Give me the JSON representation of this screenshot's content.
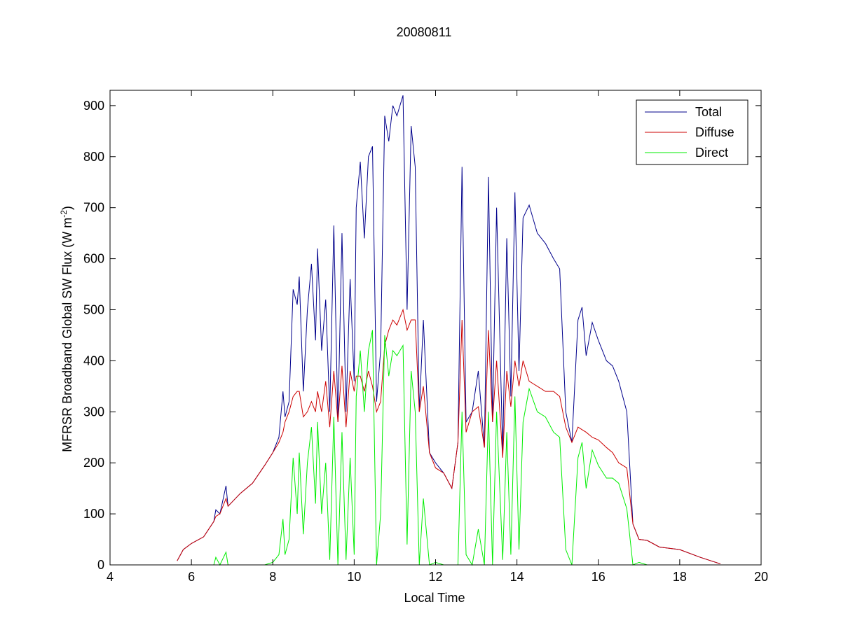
{
  "chart_data": {
    "type": "line",
    "title": "20080811",
    "xlabel": "Local Time",
    "ylabel": [
      "MFRSR Broadband Global SW Flux (W m",
      "-2",
      ")"
    ],
    "x": [
      5.65,
      5.8,
      6.0,
      6.3,
      6.55,
      6.6,
      6.7,
      6.85,
      6.9,
      7.2,
      7.5,
      7.8,
      8.0,
      8.15,
      8.25,
      8.3,
      8.4,
      8.5,
      8.6,
      8.65,
      8.75,
      8.85,
      8.95,
      9.05,
      9.1,
      9.2,
      9.3,
      9.4,
      9.5,
      9.6,
      9.7,
      9.8,
      9.9,
      10.0,
      10.05,
      10.15,
      10.25,
      10.35,
      10.45,
      10.55,
      10.65,
      10.75,
      10.85,
      10.95,
      11.05,
      11.2,
      11.3,
      11.4,
      11.5,
      11.6,
      11.7,
      11.85,
      12.0,
      12.2,
      12.4,
      12.55,
      12.65,
      12.75,
      12.9,
      13.05,
      13.2,
      13.3,
      13.4,
      13.5,
      13.65,
      13.75,
      13.85,
      13.95,
      14.05,
      14.15,
      14.3,
      14.5,
      14.7,
      14.9,
      15.05,
      15.2,
      15.35,
      15.5,
      15.6,
      15.7,
      15.85,
      16.0,
      16.2,
      16.35,
      16.5,
      16.7,
      16.85,
      17.0,
      17.2,
      17.5,
      18.0,
      18.5,
      19.0
    ],
    "series": [
      {
        "name": "Total",
        "color": "#00008b",
        "values": [
          8,
          30,
          42,
          55,
          85,
          108,
          100,
          155,
          115,
          140,
          160,
          195,
          220,
          250,
          340,
          290,
          320,
          540,
          510,
          565,
          340,
          500,
          590,
          440,
          620,
          420,
          520,
          300,
          665,
          280,
          650,
          300,
          560,
          360,
          700,
          790,
          640,
          800,
          820,
          320,
          420,
          880,
          830,
          900,
          880,
          920,
          500,
          860,
          780,
          300,
          480,
          220,
          200,
          180,
          150,
          240,
          780,
          280,
          300,
          380,
          230,
          760,
          280,
          700,
          220,
          640,
          330,
          730,
          380,
          680,
          705,
          650,
          630,
          600,
          580,
          300,
          240,
          480,
          505,
          410,
          475,
          440,
          400,
          390,
          360,
          300,
          80,
          50,
          48,
          35,
          30,
          15,
          2
        ]
      },
      {
        "name": "Diffuse",
        "color": "#cc0000",
        "values": [
          8,
          30,
          42,
          55,
          85,
          95,
          100,
          130,
          115,
          140,
          160,
          195,
          220,
          240,
          260,
          280,
          300,
          330,
          340,
          340,
          290,
          300,
          320,
          300,
          340,
          300,
          360,
          270,
          380,
          280,
          390,
          270,
          380,
          340,
          370,
          370,
          340,
          380,
          350,
          300,
          320,
          430,
          460,
          480,
          470,
          500,
          460,
          480,
          480,
          300,
          350,
          220,
          190,
          180,
          150,
          240,
          480,
          260,
          300,
          310,
          230,
          460,
          280,
          400,
          210,
          380,
          310,
          400,
          350,
          400,
          360,
          350,
          340,
          340,
          330,
          270,
          240,
          270,
          265,
          260,
          250,
          245,
          230,
          220,
          200,
          190,
          80,
          50,
          48,
          35,
          30,
          15,
          2
        ]
      },
      {
        "name": "Direct",
        "color": "#00ee00",
        "values": [
          null,
          null,
          0,
          0,
          0,
          15,
          0,
          25,
          0,
          0,
          0,
          0,
          5,
          20,
          90,
          20,
          50,
          210,
          100,
          220,
          60,
          200,
          270,
          120,
          280,
          100,
          200,
          10,
          290,
          0,
          260,
          10,
          210,
          20,
          330,
          420,
          300,
          420,
          460,
          0,
          100,
          450,
          370,
          420,
          410,
          430,
          40,
          380,
          300,
          0,
          130,
          0,
          5,
          0,
          0,
          0,
          300,
          20,
          0,
          70,
          0,
          300,
          0,
          300,
          10,
          260,
          20,
          330,
          30,
          280,
          345,
          300,
          290,
          260,
          250,
          30,
          0,
          210,
          240,
          150,
          225,
          195,
          170,
          170,
          160,
          110,
          0,
          5,
          0,
          null,
          null,
          null,
          null
        ]
      }
    ],
    "xlim": [
      4,
      20
    ],
    "xticks": [
      4,
      6,
      8,
      10,
      12,
      14,
      16,
      18,
      20
    ],
    "ylim": [
      0,
      930
    ],
    "yticks": [
      0,
      100,
      200,
      300,
      400,
      500,
      600,
      700,
      800,
      900
    ],
    "legend": "northeast"
  }
}
